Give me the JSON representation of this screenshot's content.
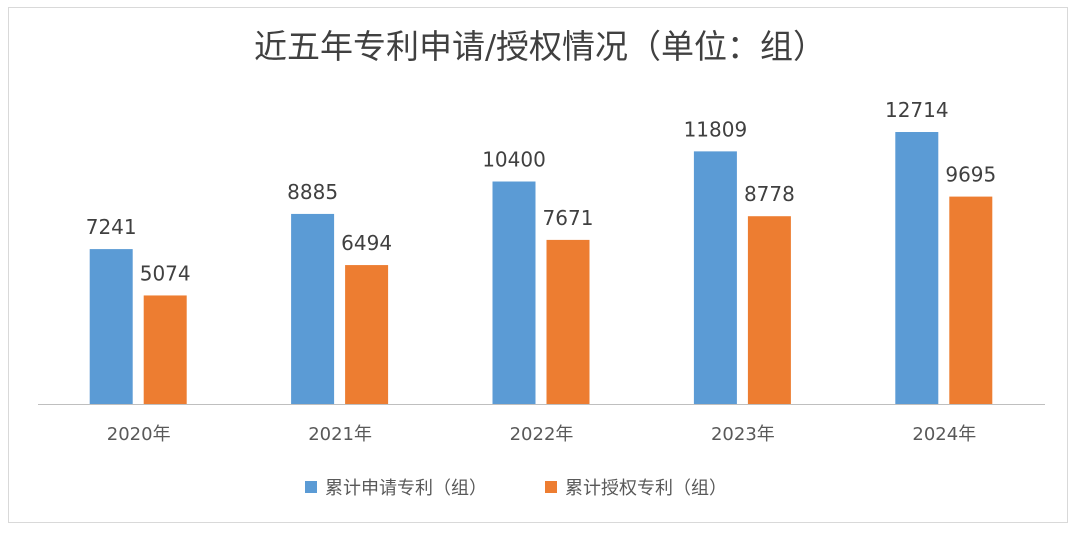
{
  "chart_data": {
    "type": "bar",
    "title": "近五年专利申请/授权情况（单位：组）",
    "xlabel": "",
    "ylabel": "",
    "categories": [
      "2020年",
      "2021年",
      "2022年",
      "2023年",
      "2024年"
    ],
    "series": [
      {
        "name": "累计申请专利（组）",
        "color": "#5B9BD5",
        "values": [
          7241,
          8885,
          10400,
          11809,
          12714
        ]
      },
      {
        "name": "累计授权专利（组）",
        "color": "#ED7D31",
        "values": [
          5074,
          6494,
          7671,
          8778,
          9695
        ]
      }
    ],
    "ylim": [
      0,
      14000
    ],
    "grid": false,
    "data_labels": true,
    "legend_position": "bottom"
  }
}
